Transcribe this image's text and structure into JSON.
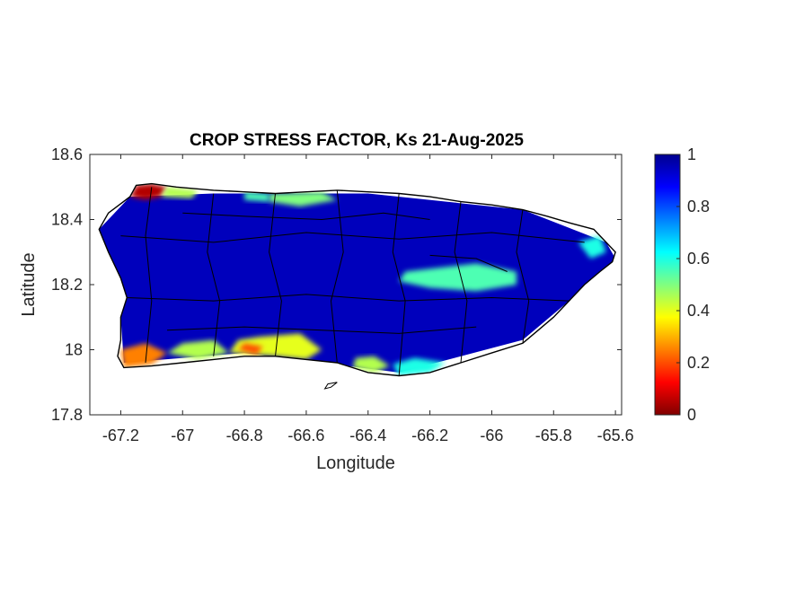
{
  "chart_data": {
    "type": "heatmap",
    "title": "CROP STRESS FACTOR, Ks  21-Aug-2025",
    "xlabel": "Longitude",
    "ylabel": "Latitude",
    "xlim": [
      -67.3,
      -65.58
    ],
    "ylim": [
      17.8,
      18.6
    ],
    "xticks": [
      -67.2,
      -67,
      -66.8,
      -66.6,
      -66.4,
      -66.2,
      -66,
      -65.8,
      -65.6
    ],
    "yticks": [
      18.6,
      18.4,
      18.2,
      18.0,
      17.8
    ],
    "xtick_labels": [
      "-67.2",
      "-67",
      "-66.8",
      "-66.6",
      "-66.4",
      "-66.2",
      "-66",
      "-65.8",
      "-65.6"
    ],
    "ytick_labels": [
      "18.6",
      "18.4",
      "18.2",
      "18",
      "17.8"
    ],
    "colorbar": {
      "colormap": "jet",
      "range": [
        0,
        1
      ],
      "ticks": [
        0,
        0.2,
        0.4,
        0.6,
        0.8,
        1
      ],
      "tick_labels": [
        "0",
        "0.2",
        "0.4",
        "0.6",
        "0.8",
        "1"
      ]
    },
    "grid": false,
    "outline": [
      [
        -67.27,
        18.37
      ],
      [
        -67.24,
        18.42
      ],
      [
        -67.17,
        18.47
      ],
      [
        -67.15,
        18.505
      ],
      [
        -67.1,
        18.51
      ],
      [
        -67.02,
        18.5
      ],
      [
        -66.9,
        18.49
      ],
      [
        -66.8,
        18.485
      ],
      [
        -66.7,
        18.48
      ],
      [
        -66.6,
        18.485
      ],
      [
        -66.5,
        18.49
      ],
      [
        -66.4,
        18.485
      ],
      [
        -66.3,
        18.48
      ],
      [
        -66.2,
        18.47
      ],
      [
        -66.1,
        18.455
      ],
      [
        -66.0,
        18.445
      ],
      [
        -65.9,
        18.43
      ],
      [
        -65.82,
        18.41
      ],
      [
        -65.75,
        18.39
      ],
      [
        -65.67,
        18.37
      ],
      [
        -65.63,
        18.33
      ],
      [
        -65.6,
        18.3
      ],
      [
        -65.61,
        18.27
      ],
      [
        -65.65,
        18.24
      ],
      [
        -65.7,
        18.2
      ],
      [
        -65.75,
        18.15
      ],
      [
        -65.8,
        18.1
      ],
      [
        -65.85,
        18.06
      ],
      [
        -65.9,
        18.02
      ],
      [
        -66.0,
        17.99
      ],
      [
        -66.1,
        17.96
      ],
      [
        -66.2,
        17.93
      ],
      [
        -66.3,
        17.92
      ],
      [
        -66.4,
        17.93
      ],
      [
        -66.5,
        17.96
      ],
      [
        -66.6,
        17.97
      ],
      [
        -66.7,
        17.98
      ],
      [
        -66.8,
        17.98
      ],
      [
        -66.9,
        17.97
      ],
      [
        -67.0,
        17.96
      ],
      [
        -67.1,
        17.95
      ],
      [
        -67.19,
        17.945
      ],
      [
        -67.21,
        17.98
      ],
      [
        -67.2,
        18.03
      ],
      [
        -67.2,
        18.1
      ],
      [
        -67.18,
        18.16
      ],
      [
        -67.2,
        18.22
      ],
      [
        -67.24,
        18.3
      ],
      [
        -67.27,
        18.37
      ]
    ],
    "islands": [
      [
        [
          -66.5,
          17.9
        ],
        [
          -66.52,
          17.885
        ],
        [
          -66.54,
          17.88
        ],
        [
          -66.53,
          17.895
        ],
        [
          -66.5,
          17.9
        ]
      ]
    ],
    "regions": [
      {
        "level": 0.95,
        "polygon": [
          [
            -67.27,
            18.37
          ],
          [
            -67.17,
            18.47
          ],
          [
            -66.9,
            18.48
          ],
          [
            -66.4,
            18.48
          ],
          [
            -65.9,
            18.43
          ],
          [
            -65.63,
            18.33
          ],
          [
            -65.6,
            18.28
          ],
          [
            -65.75,
            18.15
          ],
          [
            -65.9,
            18.03
          ],
          [
            -66.3,
            17.93
          ],
          [
            -66.8,
            17.99
          ],
          [
            -67.19,
            17.96
          ],
          [
            -67.2,
            18.1
          ],
          [
            -67.24,
            18.3
          ]
        ]
      },
      {
        "level": 0.05,
        "polygon": [
          [
            -67.17,
            18.47
          ],
          [
            -67.15,
            18.505
          ],
          [
            -67.1,
            18.51
          ],
          [
            -67.05,
            18.5
          ],
          [
            -67.07,
            18.47
          ],
          [
            -67.12,
            18.46
          ]
        ]
      },
      {
        "level": 0.45,
        "polygon": [
          [
            -67.05,
            18.5
          ],
          [
            -66.95,
            18.49
          ],
          [
            -66.97,
            18.465
          ],
          [
            -67.07,
            18.47
          ]
        ]
      },
      {
        "level": 0.5,
        "polygon": [
          [
            -66.72,
            18.48
          ],
          [
            -66.55,
            18.485
          ],
          [
            -66.5,
            18.46
          ],
          [
            -66.62,
            18.44
          ],
          [
            -66.72,
            18.455
          ]
        ]
      },
      {
        "level": 0.55,
        "polygon": [
          [
            -66.8,
            18.485
          ],
          [
            -66.72,
            18.48
          ],
          [
            -66.72,
            18.455
          ],
          [
            -66.8,
            18.46
          ]
        ]
      },
      {
        "level": 0.55,
        "polygon": [
          [
            -66.28,
            18.24
          ],
          [
            -66.05,
            18.265
          ],
          [
            -65.92,
            18.24
          ],
          [
            -65.92,
            18.2
          ],
          [
            -66.05,
            18.18
          ],
          [
            -66.2,
            18.19
          ],
          [
            -66.3,
            18.21
          ]
        ]
      },
      {
        "level": 0.6,
        "polygon": [
          [
            -65.72,
            18.33
          ],
          [
            -65.65,
            18.35
          ],
          [
            -65.63,
            18.3
          ],
          [
            -65.68,
            18.28
          ]
        ]
      },
      {
        "level": 0.25,
        "polygon": [
          [
            -67.2,
            18.0
          ],
          [
            -67.19,
            17.945
          ],
          [
            -67.1,
            17.955
          ],
          [
            -67.05,
            17.99
          ],
          [
            -67.12,
            18.02
          ]
        ]
      },
      {
        "level": 0.45,
        "polygon": [
          [
            -67.05,
            17.99
          ],
          [
            -66.95,
            17.97
          ],
          [
            -66.85,
            17.99
          ],
          [
            -66.9,
            18.03
          ],
          [
            -67.0,
            18.02
          ]
        ]
      },
      {
        "level": 0.4,
        "polygon": [
          [
            -66.85,
            17.99
          ],
          [
            -66.7,
            17.98
          ],
          [
            -66.6,
            17.97
          ],
          [
            -66.55,
            18.0
          ],
          [
            -66.62,
            18.05
          ],
          [
            -66.75,
            18.04
          ],
          [
            -66.82,
            18.03
          ]
        ]
      },
      {
        "level": 0.2,
        "polygon": [
          [
            -66.82,
            18.0
          ],
          [
            -66.76,
            17.985
          ],
          [
            -66.74,
            18.01
          ],
          [
            -66.8,
            18.02
          ]
        ]
      },
      {
        "level": 0.45,
        "polygon": [
          [
            -66.45,
            17.945
          ],
          [
            -66.38,
            17.93
          ],
          [
            -66.33,
            17.95
          ],
          [
            -66.38,
            17.98
          ],
          [
            -66.44,
            17.975
          ]
        ]
      },
      {
        "level": 0.6,
        "polygon": [
          [
            -66.3,
            17.92
          ],
          [
            -66.2,
            17.93
          ],
          [
            -66.15,
            17.96
          ],
          [
            -66.25,
            17.975
          ],
          [
            -66.32,
            17.955
          ]
        ]
      }
    ],
    "municipal_borders": [
      [
        [
          -67.1,
          18.5
        ],
        [
          -67.12,
          18.35
        ],
        [
          -67.1,
          18.15
        ],
        [
          -67.12,
          17.96
        ]
      ],
      [
        [
          -66.9,
          18.48
        ],
        [
          -66.92,
          18.3
        ],
        [
          -66.88,
          18.15
        ],
        [
          -66.9,
          17.98
        ]
      ],
      [
        [
          -66.7,
          18.48
        ],
        [
          -66.72,
          18.3
        ],
        [
          -66.68,
          18.15
        ],
        [
          -66.7,
          17.98
        ]
      ],
      [
        [
          -66.5,
          18.49
        ],
        [
          -66.48,
          18.3
        ],
        [
          -66.52,
          18.15
        ],
        [
          -66.5,
          17.96
        ]
      ],
      [
        [
          -66.3,
          18.48
        ],
        [
          -66.32,
          18.3
        ],
        [
          -66.28,
          18.15
        ],
        [
          -66.3,
          17.92
        ]
      ],
      [
        [
          -66.1,
          18.455
        ],
        [
          -66.12,
          18.3
        ],
        [
          -66.08,
          18.15
        ],
        [
          -66.1,
          17.96
        ]
      ],
      [
        [
          -65.9,
          18.43
        ],
        [
          -65.92,
          18.3
        ],
        [
          -65.88,
          18.15
        ],
        [
          -65.9,
          18.02
        ]
      ],
      [
        [
          -67.2,
          18.35
        ],
        [
          -66.9,
          18.33
        ],
        [
          -66.6,
          18.36
        ],
        [
          -66.3,
          18.34
        ],
        [
          -66.0,
          18.36
        ],
        [
          -65.7,
          18.33
        ]
      ],
      [
        [
          -67.18,
          18.16
        ],
        [
          -66.9,
          18.15
        ],
        [
          -66.6,
          18.17
        ],
        [
          -66.3,
          18.15
        ],
        [
          -66.0,
          18.16
        ],
        [
          -65.75,
          18.15
        ]
      ],
      [
        [
          -67.0,
          18.42
        ],
        [
          -66.8,
          18.41
        ],
        [
          -66.55,
          18.4
        ],
        [
          -66.35,
          18.42
        ],
        [
          -66.2,
          18.4
        ]
      ],
      [
        [
          -67.05,
          18.06
        ],
        [
          -66.8,
          18.07
        ],
        [
          -66.55,
          18.06
        ],
        [
          -66.3,
          18.05
        ],
        [
          -66.05,
          18.07
        ]
      ],
      [
        [
          -66.2,
          18.29
        ],
        [
          -66.05,
          18.28
        ],
        [
          -65.95,
          18.24
        ]
      ]
    ]
  }
}
